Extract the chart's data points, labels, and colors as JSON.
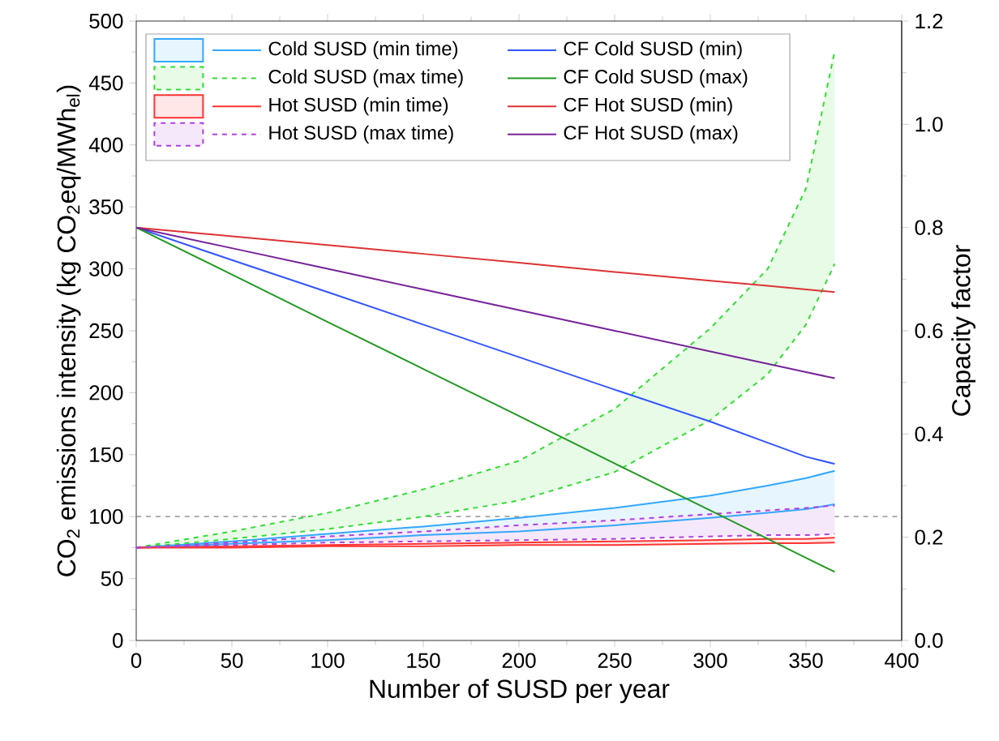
{
  "chart_data": {
    "type": "line",
    "xlabel": "Number of SUSD per year",
    "ylabel": "CO$_{2}$ emissions intensity (kg CO$_{2}$eq/MWh$_{el}$)",
    "y2label": "Capacity factor",
    "x": [
      0,
      50,
      100,
      150,
      200,
      250,
      300,
      330,
      350,
      365
    ],
    "xlim": [
      0,
      400
    ],
    "xticks": [
      0,
      50,
      100,
      150,
      200,
      250,
      300,
      350,
      400
    ],
    "ylim": [
      0,
      500
    ],
    "yticks": [
      0,
      50,
      100,
      150,
      200,
      250,
      300,
      350,
      400,
      450,
      500
    ],
    "y2lim": [
      0,
      1.2
    ],
    "y2ticks": [
      {
        "value": 0,
        "label": "0.0"
      },
      0.2,
      0.4,
      0.6,
      0.8,
      {
        "value": 1,
        "label": "1.0"
      },
      1.2
    ],
    "legend": "top left",
    "ref_lines": [
      {
        "axis": "y",
        "value": 100,
        "color": "#808080",
        "line_style": "dashed"
      }
    ],
    "series": [
      {
        "name": "Cold SUSD (min time)",
        "color": "#33a8ff",
        "line_style": "solid",
        "values": [
          75,
          80,
          86,
          92,
          99,
          107,
          117,
          125,
          131,
          137
        ],
        "lower": [
          75,
          78,
          81,
          85,
          88,
          93,
          99,
          103,
          106,
          110
        ],
        "upper": [
          75,
          80,
          86,
          92,
          99,
          107,
          117,
          125,
          131,
          137
        ]
      },
      {
        "color": "#33a8ff",
        "line_style": "solid",
        "values": [
          75,
          78,
          81,
          85,
          88,
          93,
          99,
          103,
          106,
          110
        ]
      },
      {
        "name": "Cold SUSD (max time)",
        "color": "#33dd33",
        "line_style": "dashed",
        "values": [
          75,
          88,
          103,
          122,
          145,
          187,
          252,
          300,
          365,
          476
        ],
        "lower": [
          75,
          82,
          90,
          100,
          113,
          136,
          178,
          215,
          255,
          304
        ],
        "upper": [
          75,
          88,
          103,
          122,
          145,
          187,
          252,
          300,
          365,
          476
        ]
      },
      {
        "color": "#33dd33",
        "line_style": "dashed",
        "values": [
          75,
          82,
          90,
          100,
          113,
          136,
          178,
          215,
          255,
          304
        ]
      },
      {
        "name": "Hot SUSD (min time)",
        "color": "#ff3333",
        "line_style": "solid",
        "values": [
          75,
          76,
          77,
          78,
          79,
          80,
          81,
          82,
          82,
          83
        ],
        "lower": [
          75,
          75,
          76,
          76,
          77,
          77,
          78,
          78.5,
          78.5,
          79
        ],
        "upper": [
          75,
          76,
          77,
          78,
          79,
          80,
          81,
          82,
          82,
          83
        ]
      },
      {
        "color": "#ff3333",
        "line_style": "solid",
        "values": [
          75,
          75,
          76,
          76,
          77,
          77,
          78,
          78.5,
          78.5,
          79
        ]
      },
      {
        "name": "Hot SUSD (max time)",
        "color": "#b040e0",
        "line_style": "dashed",
        "values": [
          75,
          79,
          84,
          88,
          93,
          97,
          102,
          105,
          107,
          109
        ],
        "lower": [
          75,
          77,
          79,
          80,
          81,
          82,
          84,
          85,
          85,
          86
        ],
        "upper": [
          75,
          79,
          84,
          88,
          93,
          97,
          102,
          105,
          107,
          109
        ]
      },
      {
        "color": "#b040e0",
        "line_style": "dashed",
        "values": [
          75,
          77,
          79,
          80,
          81,
          82,
          84,
          85,
          85,
          86
        ]
      },
      {
        "name": "CF Cold SUSD (min)",
        "color": "#3355ff",
        "line_style": "solid",
        "axis": "y2",
        "values": [
          0.8,
          0.737,
          0.675,
          0.612,
          0.549,
          0.486,
          0.424,
          0.383,
          0.356,
          0.342
        ]
      },
      {
        "name": "CF Cold SUSD (max)",
        "color": "#229922",
        "line_style": "solid",
        "axis": "y2",
        "values": [
          0.8,
          0.709,
          0.617,
          0.526,
          0.435,
          0.343,
          0.252,
          0.197,
          0.16,
          0.133
        ]
      },
      {
        "name": "CF Hot SUSD (min)",
        "color": "#dd3333",
        "line_style": "solid",
        "axis": "y2",
        "values": [
          0.8,
          0.783,
          0.766,
          0.749,
          0.732,
          0.714,
          0.697,
          0.687,
          0.68,
          0.675
        ]
      },
      {
        "name": "CF Hot SUSD (max)",
        "color": "#772299",
        "line_style": "solid",
        "axis": "y2",
        "values": [
          0.8,
          0.76,
          0.72,
          0.68,
          0.64,
          0.6,
          0.56,
          0.536,
          0.52,
          0.508
        ]
      }
    ]
  }
}
